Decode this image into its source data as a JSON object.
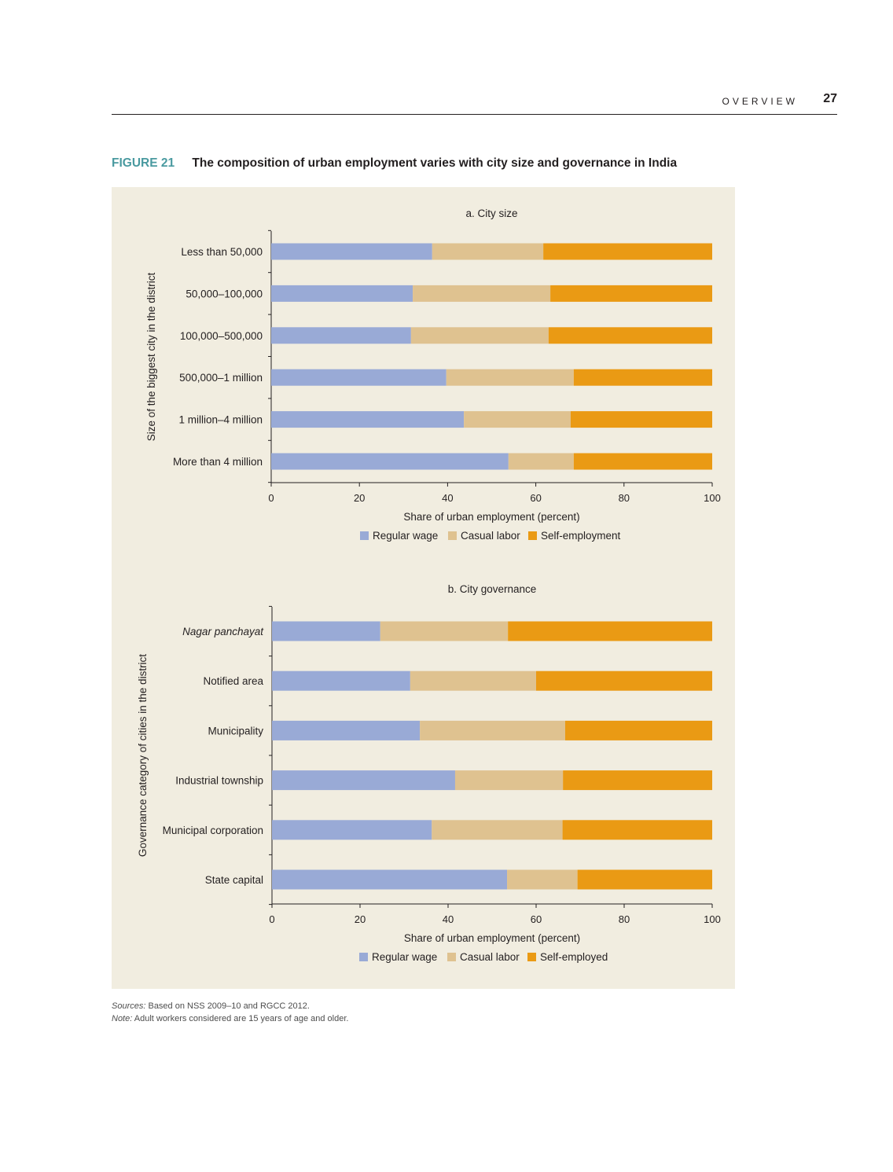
{
  "header": {
    "section": "OVERVIEW",
    "page_number": "27"
  },
  "figure": {
    "label": "FIGURE 21",
    "title": "The composition of urban employment varies with city size and governance in India"
  },
  "colors": {
    "regular": "#99aad6",
    "casual": "#dfc290",
    "self": "#ea9a14",
    "panel_bg": "#f1ede0",
    "figure_label": "#4a9aa0"
  },
  "chart_data": [
    {
      "type": "bar",
      "orientation": "horizontal",
      "stacked": true,
      "title": "a. City size",
      "xlabel": "Share of urban employment (percent)",
      "ylabel": "Size of the biggest city in the district",
      "xlim": [
        0,
        100
      ],
      "xticks": [
        0,
        20,
        40,
        60,
        80,
        100
      ],
      "grid": false,
      "legend_position": "bottom",
      "categories": [
        "Less than 50,000",
        "50,000–100,000",
        "100,000–500,000",
        "500,000–1 million",
        "1 million–4 million",
        "More than 4 million"
      ],
      "italic_categories": [],
      "series": [
        {
          "name": "Regular wage",
          "values": [
            36.5,
            32.1,
            31.7,
            39.7,
            43.7,
            53.8
          ]
        },
        {
          "name": "Casual labor",
          "values": [
            25.2,
            31.2,
            31.2,
            28.9,
            24.2,
            14.8
          ]
        },
        {
          "name": "Self-employment",
          "values": [
            38.3,
            36.7,
            37.1,
            31.4,
            32.1,
            31.4
          ]
        }
      ]
    },
    {
      "type": "bar",
      "orientation": "horizontal",
      "stacked": true,
      "title": "b. City governance",
      "xlabel": "Share of urban employment (percent)",
      "ylabel": "Governance category of cities in the district",
      "xlim": [
        0,
        100
      ],
      "xticks": [
        0,
        20,
        40,
        60,
        80,
        100
      ],
      "grid": false,
      "legend_position": "bottom",
      "categories": [
        "Nagar panchayat",
        "Notified area",
        "Municipality",
        "Industrial township",
        "Municipal corporation",
        "State capital"
      ],
      "italic_categories": [
        "Nagar panchayat"
      ],
      "series": [
        {
          "name": "Regular wage",
          "values": [
            24.6,
            31.4,
            33.6,
            41.6,
            36.3,
            53.4
          ]
        },
        {
          "name": "Casual labor",
          "values": [
            29.0,
            28.6,
            33.0,
            24.5,
            29.7,
            16.0
          ]
        },
        {
          "name": "Self-employed",
          "values": [
            46.4,
            40.0,
            33.4,
            33.9,
            34.0,
            30.6
          ]
        }
      ]
    }
  ],
  "footnotes": {
    "sources_label": "Sources:",
    "sources_text": " Based on NSS 2009–10 and RGCC 2012.",
    "note_label": "Note:",
    "note_text": " Adult workers considered are 15 years of age and older."
  }
}
